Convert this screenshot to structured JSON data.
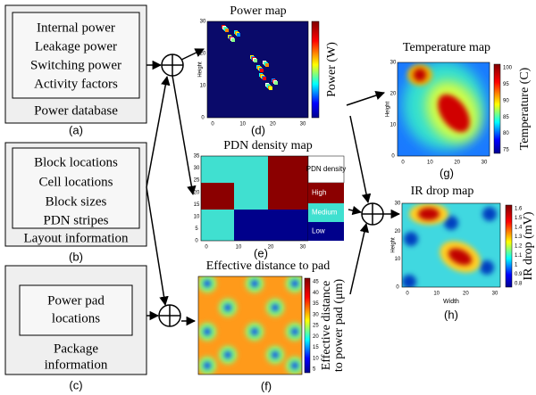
{
  "boxes": [
    {
      "items": [
        [
          "Internal power"
        ],
        [
          "Leakage power"
        ],
        [
          "Switching power"
        ],
        [
          "Activity factors"
        ]
      ],
      "caption": [
        "Power database"
      ],
      "label": "(a)"
    },
    {
      "items": [
        [
          "Block locations"
        ],
        [
          "Cell locations"
        ],
        [
          "Block sizes"
        ],
        [
          "PDN stripes"
        ]
      ],
      "caption": [
        "Layout information"
      ],
      "label": "(b)"
    },
    {
      "items": [
        [
          "Power pad",
          "locations"
        ]
      ],
      "caption": [
        "Package",
        "information"
      ],
      "label": "(c)"
    }
  ],
  "maps": [
    {
      "title": "Power map",
      "colorbar_label": [
        "Power (W)"
      ],
      "y_label": "Height",
      "yticks": [
        0,
        10,
        20,
        30
      ],
      "xticks": [
        0,
        10,
        20,
        30
      ],
      "label": "(d)"
    },
    {
      "title": "PDN density map",
      "yticks": [
        0,
        5,
        10,
        15,
        20,
        25,
        30,
        35
      ],
      "xticks": [
        0,
        10,
        20,
        30
      ],
      "legend": {
        "title": "PDN density",
        "entries": [
          "High",
          "Medium",
          "Low"
        ]
      },
      "label": "(e)"
    },
    {
      "title": "Effective  distance to pad",
      "colorbar_ticks": [
        5,
        10,
        15,
        20,
        25,
        30,
        35,
        40,
        45
      ],
      "colorbar_label": [
        "Effective distance",
        "to power pad (μm)"
      ],
      "label": "(f)"
    },
    {
      "title": "Temperature map",
      "colorbar_ticks": [
        75,
        80,
        85,
        90,
        95,
        100
      ],
      "colorbar_label": [
        "Temperature (C)"
      ],
      "y_label": "Height",
      "yticks": [
        0,
        10,
        20,
        30
      ],
      "xticks": [
        0,
        10,
        20,
        30
      ],
      "label": "(g)"
    },
    {
      "title": "IR drop map",
      "colorbar_ticks": [
        0.8,
        0.9,
        1,
        1.1,
        1.2,
        1.3,
        1.4,
        1.5,
        1.6
      ],
      "colorbar_label": [
        "IR drop (mV)"
      ],
      "y_label": "Height",
      "x_label": "Width",
      "yticks": [
        0,
        10,
        20,
        30
      ],
      "xticks": [
        0,
        10,
        20,
        30
      ],
      "label": "(h)"
    }
  ]
}
